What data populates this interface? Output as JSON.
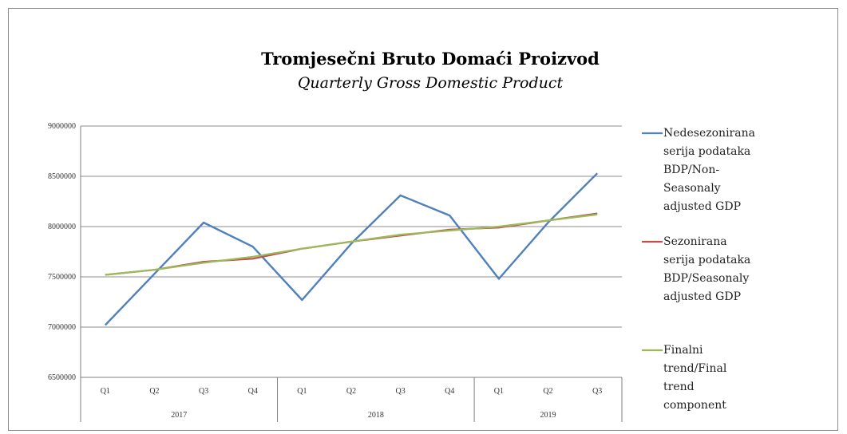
{
  "chart_data": {
    "type": "line",
    "title": "Tromjesečni Bruto Domaći Proizvod",
    "subtitle": "Quarterly Gross Domestic Product",
    "categories": [
      "Q1",
      "Q2",
      "Q3",
      "Q4",
      "Q1",
      "Q2",
      "Q3",
      "Q4",
      "Q1",
      "Q2",
      "Q3"
    ],
    "groups": [
      {
        "label": "2017",
        "count": 4
      },
      {
        "label": "2018",
        "count": 4
      },
      {
        "label": "2019",
        "count": 3
      }
    ],
    "ylim": [
      6500000,
      9000000
    ],
    "yticks": [
      6500000,
      7000000,
      7500000,
      8000000,
      8500000,
      9000000
    ],
    "grid": true,
    "legend_position": "right",
    "series": [
      {
        "name": "Nedesezonirana serija podataka BDP/Non-Seasonaly adjusted GDP",
        "legend_lines": [
          "Nedesezonirana",
          "serija podataka",
          "BDP/Non-",
          "Seasonaly",
          "adjusted GDP"
        ],
        "color": "#4f81bd",
        "values": [
          7020000,
          7530000,
          8040000,
          7800000,
          7270000,
          7830000,
          8310000,
          8110000,
          7480000,
          8040000,
          8530000
        ]
      },
      {
        "name": "Sezonirana serija podataka BDP/Seasonaly adjusted GDP",
        "legend_lines": [
          "Sezonirana",
          "serija podataka",
          "BDP/Seasonaly",
          "adjusted GDP"
        ],
        "color": "#c0504d",
        "values": [
          7520000,
          7570000,
          7650000,
          7680000,
          7780000,
          7850000,
          7910000,
          7970000,
          7990000,
          8060000,
          8130000
        ]
      },
      {
        "name": "Finalni trend/Final trend component",
        "legend_lines": [
          "Finalni",
          "trend/Final",
          "trend",
          "component"
        ],
        "color": "#9bbb59",
        "values": [
          7520000,
          7570000,
          7640000,
          7700000,
          7780000,
          7850000,
          7920000,
          7960000,
          8000000,
          8060000,
          8120000
        ]
      }
    ]
  }
}
